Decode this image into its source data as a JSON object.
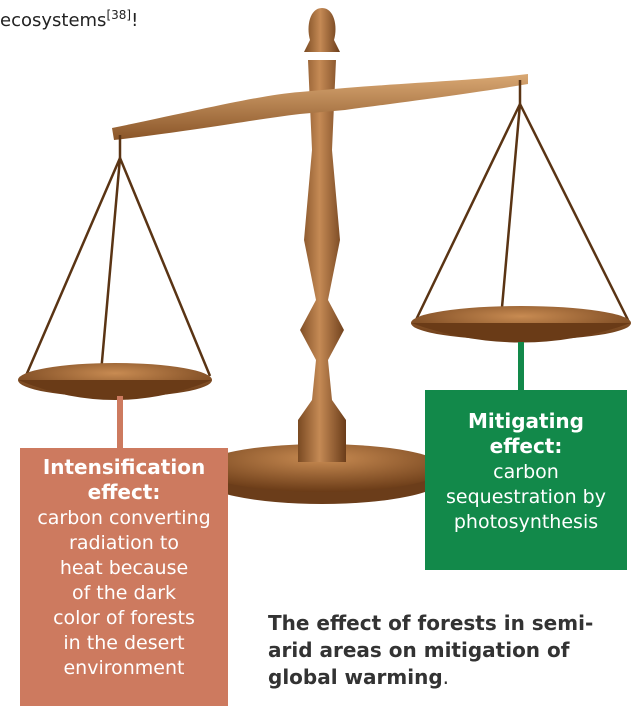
{
  "intro": {
    "word": "ecosystems",
    "citation": "[38]",
    "end": "!"
  },
  "left_box": {
    "title_lines": [
      "Intensification",
      "effect:"
    ],
    "body_lines": [
      "carbon converting",
      "radiation to",
      "heat because",
      "of the dark",
      "color of forests",
      "in the desert",
      "environment"
    ]
  },
  "right_box": {
    "title_lines": [
      "Mitigating",
      "effect:"
    ],
    "body_lines": [
      "carbon",
      "sequestration by",
      "photosynthesis"
    ]
  },
  "caption": {
    "lines": [
      "The effect of forests in semi-",
      "arid areas on mitigation of",
      "global warming"
    ],
    "end": "."
  }
}
